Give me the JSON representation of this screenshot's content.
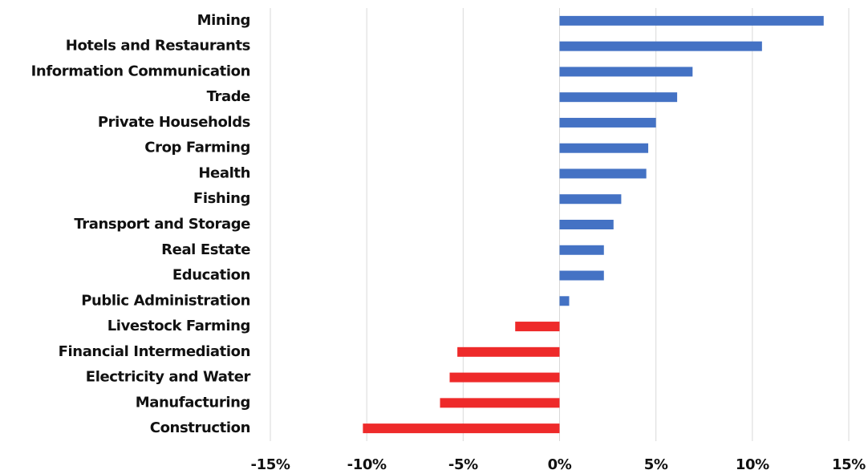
{
  "chart_data": {
    "type": "hbar",
    "categories": [
      "Mining",
      "Hotels and Restaurants",
      "Information Communication",
      "Trade",
      "Private Households",
      "Crop Farming",
      "Health",
      "Fishing",
      "Transport and Storage",
      "Real Estate",
      "Education",
      "Public Administration",
      "Livestock Farming",
      "Financial Intermediation",
      "Electricity and Water",
      "Manufacturing",
      "Construction"
    ],
    "values": [
      13.7,
      10.5,
      6.9,
      6.1,
      5.0,
      4.6,
      4.5,
      3.2,
      2.8,
      2.3,
      2.3,
      0.5,
      -2.3,
      -5.3,
      -5.7,
      -6.2,
      -10.2
    ],
    "positive_color": "#4472c4",
    "negative_color": "#ee2a2a",
    "xlim": [
      -15,
      15
    ],
    "xticks": [
      {
        "value": -15,
        "label": "-15%"
      },
      {
        "value": -10,
        "label": "-10%"
      },
      {
        "value": -5,
        "label": "-5%"
      },
      {
        "value": 0,
        "label": "0%"
      },
      {
        "value": 5,
        "label": "5%"
      },
      {
        "value": 10,
        "label": "10%"
      },
      {
        "value": 15,
        "label": "15%"
      }
    ],
    "grid": true
  }
}
